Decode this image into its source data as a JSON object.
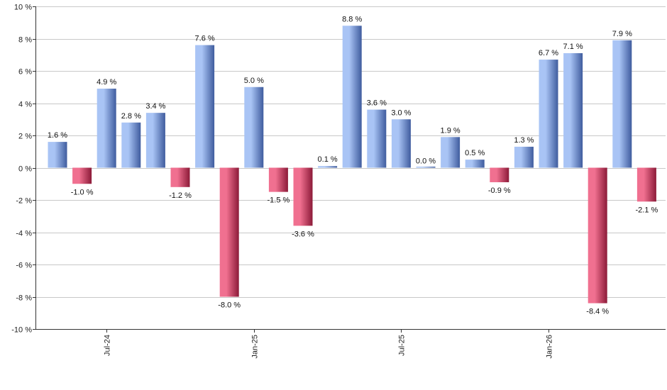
{
  "chart_data": {
    "type": "bar",
    "title": "",
    "xlabel": "",
    "ylabel": "",
    "ylim": [
      -10,
      10
    ],
    "y_ticks": [
      -10,
      -8,
      -6,
      -4,
      -2,
      0,
      2,
      4,
      6,
      8,
      10
    ],
    "y_tick_suffix": " %",
    "values": [
      1.6,
      -1.0,
      4.9,
      2.8,
      3.4,
      -1.2,
      7.6,
      -8.0,
      5.0,
      -1.5,
      -3.6,
      0.1,
      8.8,
      3.6,
      3.0,
      0.0,
      1.9,
      0.5,
      -0.9,
      1.3,
      6.7,
      7.1,
      -8.4,
      7.9,
      -2.1
    ],
    "data_labels": [
      "1.6 %",
      "-1.0 %",
      "4.9 %",
      "2.8 %",
      "3.4 %",
      "-1.2 %",
      "7.6 %",
      "-8.0 %",
      "5.0 %",
      "-1.5 %",
      "-3.6 %",
      "0.1 %",
      "8.8 %",
      "3.6 %",
      "3.0 %",
      "0.0 %",
      "1.9 %",
      "0.5 %",
      "-0.9 %",
      "1.3 %",
      "6.7 %",
      "7.1 %",
      "-8.4 %",
      "7.9 %",
      "-2.1 %"
    ],
    "x_ticks": [
      {
        "label": "Jul-24",
        "bar_index": 2
      },
      {
        "label": "Jan-25",
        "bar_index": 8
      },
      {
        "label": "Jul-25",
        "bar_index": 14
      },
      {
        "label": "Jan-26",
        "bar_index": 20
      }
    ],
    "grid": true,
    "colors": {
      "positive_light": "#a9c4f5",
      "positive_dark": "#3f5c9e",
      "negative_light": "#f07090",
      "negative_dark": "#8c1a38",
      "grid": "#c8c8c8",
      "axis": "#333333"
    }
  }
}
